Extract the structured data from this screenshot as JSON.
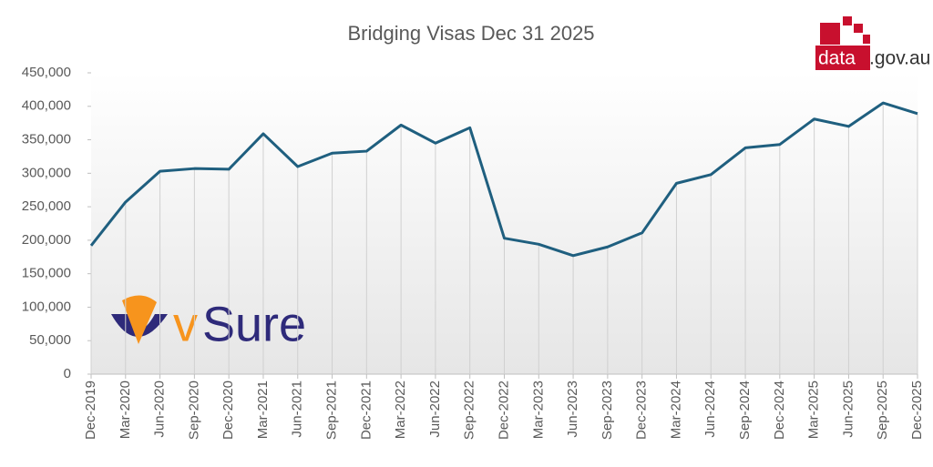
{
  "chart_data": {
    "type": "line",
    "title": "Bridging Visas Dec  31 2025",
    "categories": [
      "Dec-2019",
      "Mar-2020",
      "Jun-2020",
      "Sep-2020",
      "Dec-2020",
      "Mar-2021",
      "Jun-2021",
      "Sep-2021",
      "Dec-2021",
      "Mar-2022",
      "Jun-2022",
      "Sep-2022",
      "Dec-2022",
      "Mar-2023",
      "Jun-2023",
      "Sep-2023",
      "Dec-2023",
      "Mar-2024",
      "Jun-2024",
      "Sep-2024",
      "Dec-2024",
      "Mar-2025",
      "Jun-2025",
      "Sep-2025",
      "Dec-2025"
    ],
    "series": [
      {
        "name": "Bridging Visas",
        "color": "#1f5f7f",
        "values": [
          192000,
          257000,
          303000,
          307000,
          306000,
          359000,
          310000,
          330000,
          333000,
          372000,
          345000,
          368000,
          203000,
          194000,
          177000,
          190000,
          211000,
          285000,
          298000,
          338000,
          343000,
          381000,
          370000,
          405000,
          389000
        ]
      }
    ],
    "ylim": [
      0,
      450000
    ],
    "yticks": [
      0,
      {
        "value": 50000,
        "label": "50,000"
      },
      {
        "value": 100000,
        "label": "100,000"
      },
      {
        "value": 150000,
        "label": "150,000"
      },
      {
        "value": 200000,
        "label": "200,000"
      },
      {
        "value": 250000,
        "label": "250,000"
      },
      {
        "value": 300000,
        "label": "300,000"
      },
      {
        "value": 350000,
        "label": "350,000"
      },
      {
        "value": 400000,
        "label": "400,000"
      },
      {
        "value": 450000,
        "label": "450,000"
      }
    ],
    "drop_lines": true,
    "logos": {
      "data_gov": [
        "data",
        ".gov.au"
      ],
      "vsure": [
        "v",
        "Sure"
      ]
    }
  }
}
